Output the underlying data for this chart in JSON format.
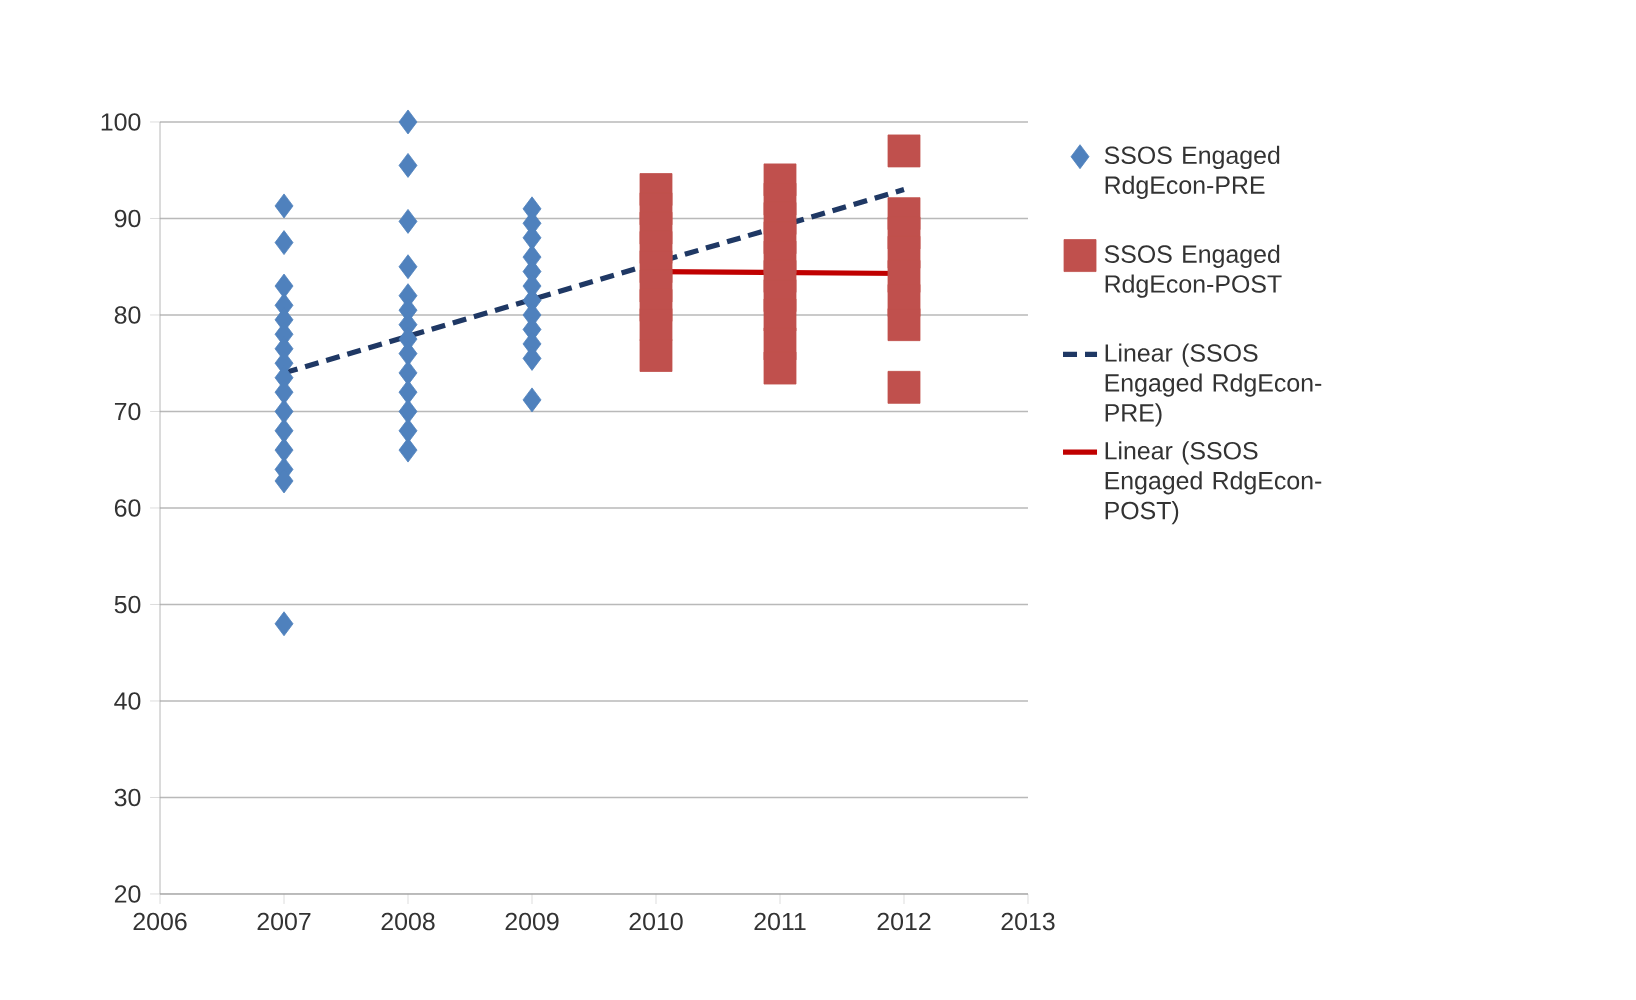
{
  "chart_data": {
    "type": "scatter",
    "xlim": [
      2006,
      2013
    ],
    "xticks": [
      2006,
      2007,
      2008,
      2009,
      2010,
      2011,
      2012,
      2013
    ],
    "ylim": [
      20,
      100
    ],
    "yticks": [
      20,
      30,
      40,
      50,
      60,
      70,
      80,
      90,
      100
    ],
    "grid": "y",
    "legend": "right",
    "series": [
      {
        "name": "SSOS Engaged RdgEcon-PRE",
        "marker": "diamond",
        "color": "#4f81bd",
        "x": [
          2007,
          2007,
          2007,
          2007,
          2007,
          2007,
          2007,
          2007,
          2007,
          2007,
          2007,
          2007,
          2007,
          2007,
          2007,
          2007,
          2008,
          2008,
          2008,
          2008,
          2008,
          2008,
          2008,
          2008,
          2008,
          2008,
          2008,
          2008,
          2008,
          2008,
          2009,
          2009,
          2009,
          2009,
          2009,
          2009,
          2009,
          2009,
          2009,
          2009,
          2009,
          2009
        ],
        "values": [
          91.3,
          87.5,
          83,
          81,
          79.5,
          78,
          76.5,
          75,
          73.5,
          72,
          70,
          68,
          66,
          64,
          62.8,
          48,
          100,
          95.5,
          89.7,
          85,
          82,
          80.5,
          79,
          77.5,
          76,
          74,
          72,
          70,
          68,
          66,
          91,
          89.5,
          88,
          86,
          84.5,
          83,
          81.5,
          80,
          78.5,
          77,
          75.5,
          71.2
        ]
      },
      {
        "name": "SSOS Engaged RdgEcon-POST",
        "marker": "square",
        "color": "#c0504d",
        "x": [
          2010,
          2010,
          2010,
          2010,
          2010,
          2010,
          2010,
          2010,
          2010,
          2011,
          2011,
          2011,
          2011,
          2011,
          2011,
          2011,
          2011,
          2011,
          2011,
          2012,
          2012,
          2012,
          2012,
          2012,
          2012,
          2012,
          2012
        ],
        "values": [
          93,
          91,
          89,
          87,
          85,
          83,
          81,
          79,
          75.8,
          94,
          92,
          90,
          88,
          86,
          84,
          82,
          80,
          77,
          74.5,
          97,
          90.5,
          88.5,
          86.5,
          84,
          81.5,
          79,
          72.5
        ]
      },
      {
        "name": "Linear (SSOS Engaged RdgEcon-PRE)",
        "type": "line",
        "line_style": "dashed",
        "marker": "none",
        "color": "#1f3864",
        "x": [
          2007,
          2012
        ],
        "values": [
          74,
          93
        ]
      },
      {
        "name": "Linear (SSOS Engaged RdgEcon-POST)",
        "type": "line",
        "line_style": "solid",
        "marker": "none",
        "color": "#c00000",
        "x": [
          2010,
          2012
        ],
        "values": [
          84.5,
          84.3
        ]
      }
    ]
  }
}
